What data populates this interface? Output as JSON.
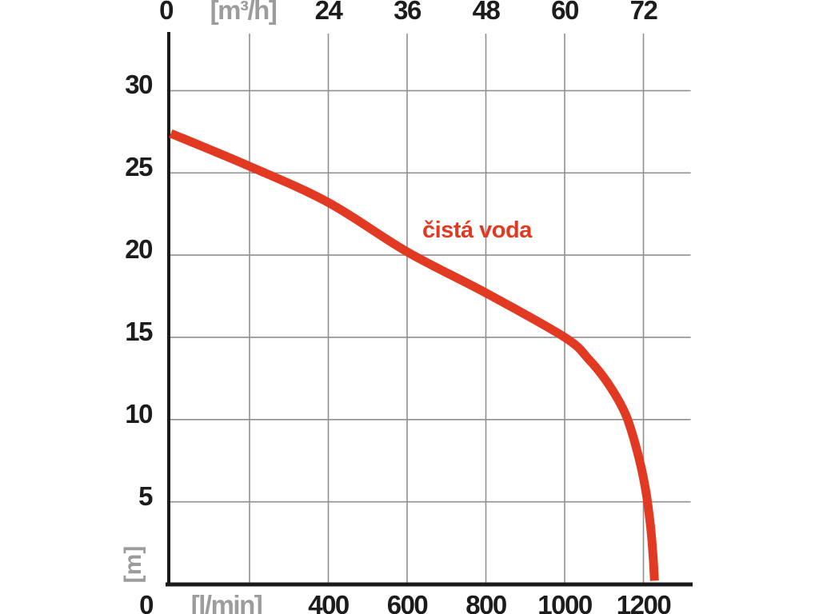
{
  "chart_data": {
    "type": "line",
    "title": "",
    "series_label": "čistá voda",
    "series": [
      {
        "name": "čistá voda",
        "color": "#e23a22",
        "points_flow_lmin_head_m": [
          [
            0,
            27.4
          ],
          [
            200,
            25.4
          ],
          [
            400,
            23.2
          ],
          [
            600,
            20.2
          ],
          [
            800,
            17.7
          ],
          [
            1000,
            15.0
          ],
          [
            1060,
            13.7
          ],
          [
            1110,
            12.2
          ],
          [
            1155,
            10.3
          ],
          [
            1185,
            8.0
          ],
          [
            1205,
            5.8
          ],
          [
            1218,
            3.5
          ],
          [
            1225,
            1.5
          ],
          [
            1228,
            0.2
          ]
        ]
      }
    ],
    "axes": {
      "top": {
        "unit_label": "[m³/h]",
        "tick_values": [
          0,
          12,
          24,
          36,
          48,
          60,
          72
        ],
        "tick_labels": [
          "0",
          "[m³/h]",
          "24",
          "36",
          "48",
          "60",
          "72"
        ]
      },
      "bottom": {
        "unit_label": "[l/min]",
        "tick_values": [
          0,
          200,
          400,
          600,
          800,
          1000,
          1200
        ],
        "tick_labels": [
          "0",
          "[l/min]",
          "400",
          "600",
          "800",
          "1000",
          "1200"
        ]
      },
      "left": {
        "unit_label": "[m]",
        "tick_values": [
          30,
          25,
          20,
          15,
          10,
          5
        ],
        "tick_labels": [
          "30",
          "25",
          "20",
          "15",
          "10",
          "5"
        ]
      }
    },
    "x_range_lmin": [
      0,
      1320
    ],
    "y_range_m": [
      0,
      33.5
    ],
    "grid": true,
    "legend_position": "none"
  },
  "colors": {
    "background": "#ffffff",
    "curve": "#e23a22",
    "series_label": "#e23a22",
    "grid_line": "#8f8f8f",
    "axis_line": "#1a1a1a",
    "tick_text": "#1c1c1c",
    "unit_text": "#9c9c9c"
  }
}
